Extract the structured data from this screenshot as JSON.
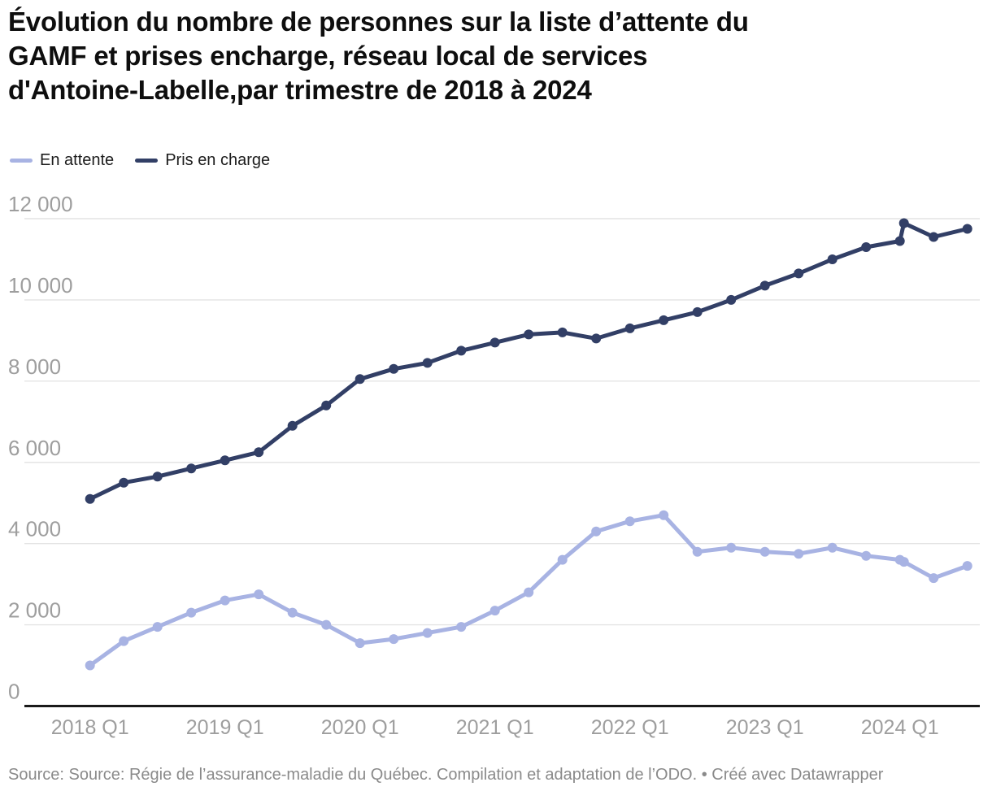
{
  "title_lines": [
    "Évolution du nombre de personnes sur la liste d’attente du",
    "GAMF et prises encharge, réseau local de services",
    "d'Antoine-Labelle,par trimestre de 2018 à 2024"
  ],
  "legend": {
    "items": [
      {
        "label": "En attente",
        "color": "#a8b3e3"
      },
      {
        "label": "Pris en charge",
        "color": "#323f66"
      }
    ]
  },
  "footer": {
    "text": "Source: Source: Régie de l’assurance-maladie du Québec. Compilation et adaptation de l’ODO. • Créé avec Datawrapper"
  },
  "colors": {
    "grid": "#e4e4e4",
    "axis": "#1a1a1a",
    "tick_text": "#9e9e9e",
    "en_attente": "#a8b3e3",
    "pris_en_charge": "#323f66"
  },
  "chart_data": {
    "type": "line",
    "title": "Évolution du nombre de personnes sur la liste d’attente du GAMF et prises encharge, réseau local de services d'Antoine-Labelle,par trimestre de 2018 à 2024",
    "grid": true,
    "legend_position": "top-left",
    "x_axis": {
      "tick_labels": [
        "2018 Q1",
        "2019 Q1",
        "2020 Q1",
        "2021 Q1",
        "2022 Q1",
        "2023 Q1",
        "2024 Q1"
      ],
      "tick_positions": [
        0,
        4,
        8,
        12,
        16,
        20,
        24
      ]
    },
    "y_axis": {
      "ticks": [
        0,
        2000,
        4000,
        6000,
        8000,
        10000,
        12000
      ],
      "tick_labels": [
        "0",
        "2 000",
        "4 000",
        "6 000",
        "8 000",
        "10 000",
        "12 000"
      ],
      "range": [
        0,
        12000
      ]
    },
    "categories": [
      "2018 Q1",
      "2018 Q2",
      "2018 Q3",
      "2018 Q4",
      "2019 Q1",
      "2019 Q2",
      "2019 Q3",
      "2019 Q4",
      "2020 Q1",
      "2020 Q2",
      "2020 Q3",
      "2020 Q4",
      "2021 Q1",
      "2021 Q2",
      "2021 Q3",
      "2021 Q4",
      "2022 Q1",
      "2022 Q2",
      "2022 Q3",
      "2022 Q4",
      "2023 Q1",
      "2023 Q2",
      "2023 Q3",
      "2023 Q4",
      "2024 Q1",
      "2024 Q1 (point supplémentaire)",
      "2024 Q2",
      "2024 Q3"
    ],
    "series": [
      {
        "name": "En attente",
        "color": "#a8b3e3",
        "points": [
          [
            0,
            1000
          ],
          [
            1,
            1600
          ],
          [
            2,
            1950
          ],
          [
            3,
            2300
          ],
          [
            4,
            2600
          ],
          [
            5,
            2750
          ],
          [
            6,
            2300
          ],
          [
            7,
            2000
          ],
          [
            8,
            1550
          ],
          [
            9,
            1650
          ],
          [
            10,
            1800
          ],
          [
            11,
            1950
          ],
          [
            12,
            2350
          ],
          [
            13,
            2800
          ],
          [
            14,
            3600
          ],
          [
            15,
            4300
          ],
          [
            16,
            4550
          ],
          [
            17,
            4700
          ],
          [
            18,
            3800
          ],
          [
            19,
            3900
          ],
          [
            20,
            3800
          ],
          [
            21,
            3750
          ],
          [
            22,
            3900
          ],
          [
            23,
            3700
          ],
          [
            24,
            3600
          ],
          [
            24.12,
            3550
          ],
          [
            25,
            3150
          ],
          [
            26,
            3450
          ]
        ]
      },
      {
        "name": "Pris en charge",
        "color": "#323f66",
        "points": [
          [
            0,
            5100
          ],
          [
            1,
            5500
          ],
          [
            2,
            5650
          ],
          [
            3,
            5850
          ],
          [
            4,
            6050
          ],
          [
            5,
            6250
          ],
          [
            6,
            6900
          ],
          [
            7,
            7400
          ],
          [
            8,
            8050
          ],
          [
            9,
            8300
          ],
          [
            10,
            8450
          ],
          [
            11,
            8750
          ],
          [
            12,
            8950
          ],
          [
            13,
            9150
          ],
          [
            14,
            9200
          ],
          [
            15,
            9050
          ],
          [
            16,
            9300
          ],
          [
            17,
            9500
          ],
          [
            18,
            9700
          ],
          [
            19,
            10000
          ],
          [
            20,
            10350
          ],
          [
            21,
            10650
          ],
          [
            22,
            11000
          ],
          [
            23,
            11300
          ],
          [
            24,
            11450
          ],
          [
            24.12,
            11890
          ],
          [
            25,
            11550
          ],
          [
            26,
            11750
          ]
        ]
      }
    ]
  }
}
